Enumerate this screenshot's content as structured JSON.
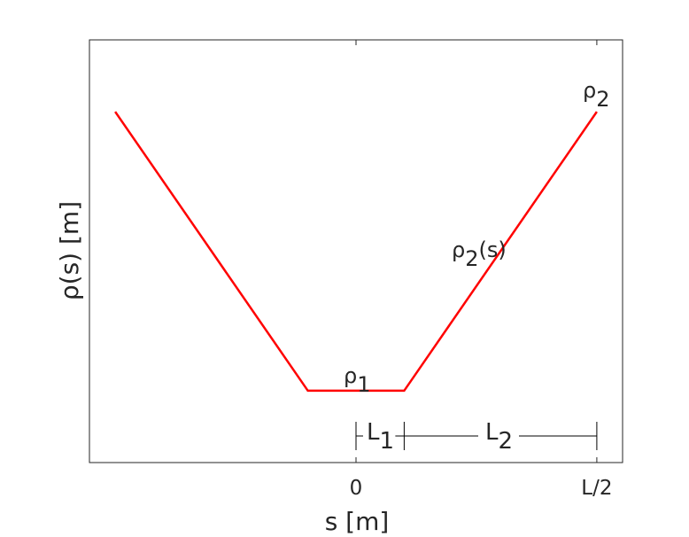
{
  "chart_data": {
    "type": "line",
    "xlabel": "s [m]",
    "ylabel": "ρ(s) [m]",
    "x": [
      -1,
      -0.2,
      0.2,
      1
    ],
    "series": [
      {
        "color": "#ff0000",
        "values": [
          0.83,
          0.17,
          0.17,
          0.83
        ]
      }
    ],
    "xlim": [
      -1.107,
      1.107
    ],
    "ylim": [
      0,
      1
    ],
    "xticks": [
      0,
      {
        "value": 1,
        "label": "L/2"
      }
    ],
    "annotations": [
      {
        "text": "ρ",
        "sub": "1"
      },
      {
        "text": "ρ",
        "sub": "2"
      },
      {
        "text": "ρ",
        "sub": "2",
        "after": "(s)"
      },
      {
        "text": "L",
        "sub": "1"
      },
      {
        "text": "L",
        "sub": "2"
      }
    ]
  }
}
